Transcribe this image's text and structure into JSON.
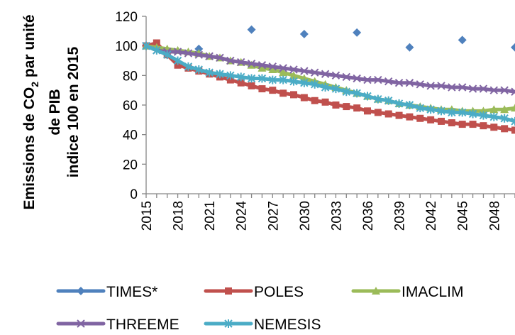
{
  "chart_data": {
    "type": "line",
    "ylabel_lines": [
      "Emissions de CO",
      "2",
      " par unité",
      "de PIB",
      "indice 100 en 2015"
    ],
    "ylim": [
      0,
      120
    ],
    "yticks": [
      "0",
      "20",
      "40",
      "60",
      "80",
      "100",
      "120"
    ],
    "xticks": [
      "2015",
      "2018",
      "2021",
      "2024",
      "2027",
      "2030",
      "2033",
      "2036",
      "2039",
      "2042",
      "2045",
      "2048"
    ],
    "grid": false,
    "legend_position": "bottom",
    "series": [
      {
        "name": "TIMES*",
        "color": "#4f81bd",
        "marker": "diamond",
        "line": false,
        "x": [
          2015,
          2020,
          2025,
          2030,
          2035,
          2040,
          2045,
          2050
        ],
        "values": [
          100,
          98,
          111,
          108,
          109,
          99,
          104,
          99
        ]
      },
      {
        "name": "POLES",
        "color": "#c0504d",
        "marker": "square",
        "line": true,
        "x": [
          2015,
          2016,
          2017,
          2018,
          2019,
          2020,
          2021,
          2022,
          2023,
          2024,
          2025,
          2026,
          2027,
          2028,
          2029,
          2030,
          2031,
          2032,
          2033,
          2034,
          2035,
          2036,
          2037,
          2038,
          2039,
          2040,
          2041,
          2042,
          2043,
          2044,
          2045,
          2046,
          2047,
          2048,
          2049,
          2050
        ],
        "values": [
          100,
          102,
          94,
          87,
          85,
          83,
          81,
          79,
          77,
          75,
          73,
          71,
          70,
          68,
          67,
          65,
          63,
          62,
          60,
          59,
          58,
          56,
          55,
          54,
          53,
          52,
          51,
          50,
          49,
          48,
          47,
          47,
          46,
          45,
          44,
          43
        ]
      },
      {
        "name": "IMACLIM",
        "color": "#9bbb59",
        "marker": "triangle",
        "line": true,
        "x": [
          2015,
          2016,
          2017,
          2018,
          2019,
          2020,
          2021,
          2022,
          2023,
          2024,
          2025,
          2026,
          2027,
          2028,
          2029,
          2030,
          2031,
          2032,
          2033,
          2034,
          2035,
          2036,
          2037,
          2038,
          2039,
          2040,
          2041,
          2042,
          2043,
          2044,
          2045,
          2046,
          2047,
          2048,
          2049,
          2050
        ],
        "values": [
          100,
          99,
          98,
          97,
          96,
          95,
          93,
          92,
          90,
          89,
          87,
          85,
          84,
          82,
          80,
          78,
          76,
          74,
          72,
          70,
          68,
          66,
          64,
          63,
          61,
          60,
          59,
          58,
          57,
          57,
          56,
          56,
          56,
          57,
          57,
          58
        ]
      },
      {
        "name": "THREEME",
        "color": "#8064a2",
        "marker": "x",
        "line": true,
        "x": [
          2015,
          2016,
          2017,
          2018,
          2019,
          2020,
          2021,
          2022,
          2023,
          2024,
          2025,
          2026,
          2027,
          2028,
          2029,
          2030,
          2031,
          2032,
          2033,
          2034,
          2035,
          2036,
          2037,
          2038,
          2039,
          2040,
          2041,
          2042,
          2043,
          2044,
          2045,
          2046,
          2047,
          2048,
          2049,
          2050
        ],
        "values": [
          100,
          97,
          96,
          96,
          95,
          94,
          93,
          92,
          90,
          89,
          88,
          87,
          86,
          85,
          84,
          83,
          82,
          81,
          80,
          79,
          78,
          77,
          77,
          76,
          75,
          75,
          74,
          73,
          73,
          72,
          72,
          71,
          71,
          70,
          70,
          69
        ]
      },
      {
        "name": "NEMESIS",
        "color": "#4bacc6",
        "marker": "star",
        "line": true,
        "x": [
          2015,
          2016,
          2017,
          2018,
          2019,
          2020,
          2021,
          2022,
          2023,
          2024,
          2025,
          2026,
          2027,
          2028,
          2029,
          2030,
          2031,
          2032,
          2033,
          2034,
          2035,
          2036,
          2037,
          2038,
          2039,
          2040,
          2041,
          2042,
          2043,
          2044,
          2045,
          2046,
          2047,
          2048,
          2049,
          2050
        ],
        "values": [
          100,
          97,
          94,
          90,
          86,
          84,
          82,
          81,
          80,
          79,
          78,
          78,
          77,
          77,
          76,
          75,
          74,
          72,
          71,
          69,
          68,
          66,
          64,
          63,
          61,
          60,
          58,
          57,
          56,
          55,
          55,
          54,
          53,
          52,
          51,
          49
        ]
      }
    ]
  }
}
